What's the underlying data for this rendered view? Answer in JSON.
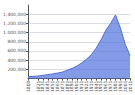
{
  "chart_data": {
    "type": "area",
    "x": [
      1800,
      1821,
      1831,
      1841,
      1851,
      1861,
      1871,
      1881,
      1891,
      1901,
      1911,
      1921,
      1931,
      1941,
      1951,
      1961,
      1971,
      1981,
      1991,
      2001,
      2011
    ],
    "values": [
      40000,
      55000,
      70000,
      85000,
      100000,
      120000,
      140000,
      180000,
      220000,
      270000,
      340000,
      420000,
      520000,
      660000,
      840000,
      1050000,
      1200000,
      1384000,
      1100000,
      750000,
      500000
    ],
    "xlim": [
      1800,
      2011
    ],
    "xticks": [
      1800,
      1821,
      1831,
      1841,
      1851,
      1861,
      1871,
      1881,
      1891,
      1901,
      1911,
      1921,
      1931,
      1941,
      1951,
      1961,
      1971,
      1981,
      1991,
      2001,
      2011
    ],
    "ylim": [
      0,
      1600000
    ],
    "yticks": [
      {
        "value": 200000,
        "label": "200,000"
      },
      {
        "value": 400000,
        "label": "400,000"
      },
      {
        "value": 600000,
        "label": "600,000"
      },
      {
        "value": 800000,
        "label": "800,000"
      },
      {
        "value": 1000000,
        "label": "1,000,000"
      },
      {
        "value": 1200000,
        "label": "1,200,000"
      },
      {
        "value": 1400000,
        "label": "1,400,000"
      }
    ],
    "grid": true
  }
}
